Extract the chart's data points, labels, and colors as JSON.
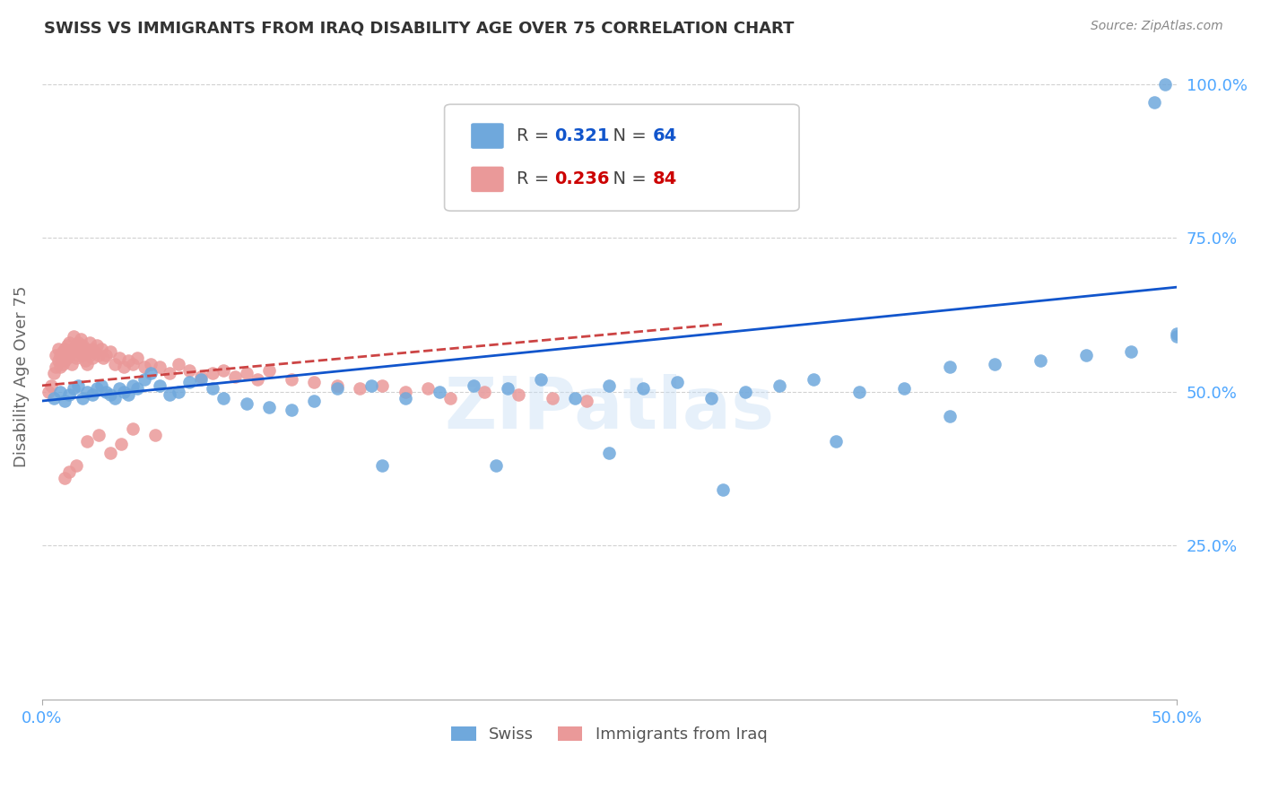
{
  "title": "SWISS VS IMMIGRANTS FROM IRAQ DISABILITY AGE OVER 75 CORRELATION CHART",
  "source": "Source: ZipAtlas.com",
  "ylabel": "Disability Age Over 75",
  "ytick_labels": [
    "100.0%",
    "75.0%",
    "50.0%",
    "25.0%"
  ],
  "xlim": [
    0.0,
    0.5
  ],
  "ylim": [
    0.0,
    1.05
  ],
  "swiss_R": "0.321",
  "swiss_N": "64",
  "iraq_R": "0.236",
  "iraq_N": "84",
  "swiss_color": "#6fa8dc",
  "iraq_color": "#ea9999",
  "swiss_line_color": "#1155cc",
  "iraq_line_color": "#cc4444",
  "watermark": "ZIPatlas",
  "swiss_x": [
    0.005,
    0.008,
    0.01,
    0.012,
    0.014,
    0.016,
    0.018,
    0.02,
    0.022,
    0.024,
    0.026,
    0.028,
    0.03,
    0.032,
    0.034,
    0.036,
    0.038,
    0.04,
    0.042,
    0.045,
    0.048,
    0.052,
    0.056,
    0.06,
    0.065,
    0.07,
    0.075,
    0.08,
    0.09,
    0.1,
    0.11,
    0.12,
    0.13,
    0.145,
    0.16,
    0.175,
    0.19,
    0.205,
    0.22,
    0.235,
    0.25,
    0.265,
    0.28,
    0.295,
    0.31,
    0.325,
    0.34,
    0.36,
    0.38,
    0.4,
    0.42,
    0.44,
    0.46,
    0.48,
    0.49,
    0.495,
    0.5,
    0.5,
    0.15,
    0.2,
    0.25,
    0.3,
    0.35,
    0.4
  ],
  "swiss_y": [
    0.49,
    0.5,
    0.485,
    0.495,
    0.505,
    0.51,
    0.49,
    0.5,
    0.495,
    0.505,
    0.51,
    0.5,
    0.495,
    0.49,
    0.505,
    0.5,
    0.495,
    0.51,
    0.505,
    0.52,
    0.53,
    0.51,
    0.495,
    0.5,
    0.515,
    0.52,
    0.505,
    0.49,
    0.48,
    0.475,
    0.47,
    0.485,
    0.505,
    0.51,
    0.49,
    0.5,
    0.51,
    0.505,
    0.52,
    0.49,
    0.51,
    0.505,
    0.515,
    0.49,
    0.5,
    0.51,
    0.52,
    0.5,
    0.505,
    0.54,
    0.545,
    0.55,
    0.56,
    0.565,
    0.97,
    1.0,
    0.59,
    0.595,
    0.38,
    0.38,
    0.4,
    0.34,
    0.42,
    0.46
  ],
  "iraq_x": [
    0.003,
    0.004,
    0.005,
    0.006,
    0.006,
    0.007,
    0.007,
    0.008,
    0.008,
    0.009,
    0.009,
    0.01,
    0.01,
    0.011,
    0.011,
    0.012,
    0.012,
    0.013,
    0.013,
    0.014,
    0.014,
    0.015,
    0.015,
    0.016,
    0.016,
    0.017,
    0.017,
    0.018,
    0.018,
    0.019,
    0.019,
    0.02,
    0.02,
    0.021,
    0.021,
    0.022,
    0.022,
    0.023,
    0.024,
    0.025,
    0.026,
    0.027,
    0.028,
    0.03,
    0.032,
    0.034,
    0.036,
    0.038,
    0.04,
    0.042,
    0.045,
    0.048,
    0.052,
    0.056,
    0.06,
    0.065,
    0.07,
    0.075,
    0.08,
    0.085,
    0.09,
    0.095,
    0.1,
    0.11,
    0.12,
    0.13,
    0.14,
    0.15,
    0.16,
    0.17,
    0.18,
    0.195,
    0.21,
    0.225,
    0.24,
    0.03,
    0.02,
    0.015,
    0.012,
    0.01,
    0.025,
    0.035,
    0.04,
    0.05
  ],
  "iraq_y": [
    0.5,
    0.51,
    0.53,
    0.54,
    0.56,
    0.55,
    0.57,
    0.54,
    0.56,
    0.545,
    0.565,
    0.55,
    0.57,
    0.555,
    0.575,
    0.56,
    0.58,
    0.565,
    0.545,
    0.57,
    0.59,
    0.575,
    0.555,
    0.58,
    0.56,
    0.565,
    0.585,
    0.56,
    0.575,
    0.55,
    0.57,
    0.565,
    0.545,
    0.56,
    0.58,
    0.555,
    0.57,
    0.565,
    0.575,
    0.56,
    0.57,
    0.555,
    0.56,
    0.565,
    0.545,
    0.555,
    0.54,
    0.55,
    0.545,
    0.555,
    0.54,
    0.545,
    0.54,
    0.53,
    0.545,
    0.535,
    0.525,
    0.53,
    0.535,
    0.525,
    0.53,
    0.52,
    0.535,
    0.52,
    0.515,
    0.51,
    0.505,
    0.51,
    0.5,
    0.505,
    0.49,
    0.5,
    0.495,
    0.49,
    0.485,
    0.4,
    0.42,
    0.38,
    0.37,
    0.36,
    0.43,
    0.415,
    0.44,
    0.43
  ]
}
